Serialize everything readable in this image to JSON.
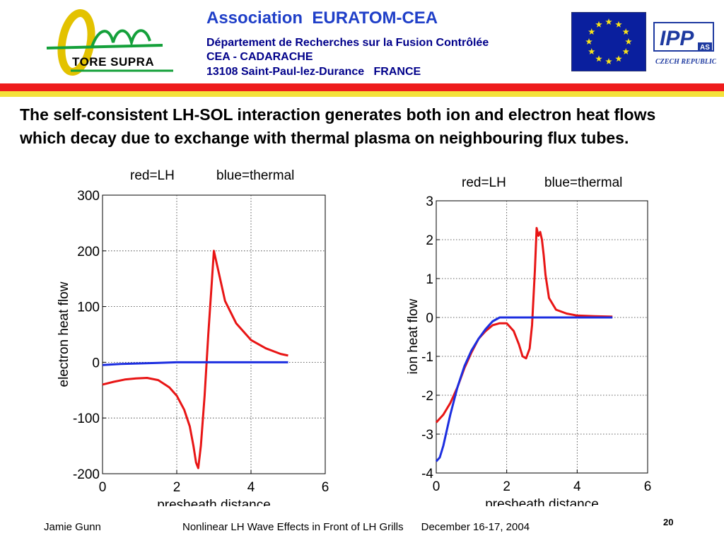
{
  "header": {
    "association": "Association  EURATOM-CEA",
    "address_line1": "Département de Recherches sur la Fusion Contrôlée",
    "address_line2": "CEA - CADARACHE",
    "address_line3": "13108 Saint-Paul-lez-Durance   FRANCE",
    "logo_text": "TORE SUPRA",
    "ipp_logo_text": "IPP",
    "ipp_logo_sub": "AS",
    "ipp_country": "CZECH REPUBLIC"
  },
  "headline": "The self-consistent LH-SOL interaction generates both ion and electron heat flows which decay due to exchange with thermal plasma on neighbouring flux tubes.",
  "footer": {
    "author": "Jamie Gunn",
    "talk": "Nonlinear LH Wave Effects in Front of LH Grills      December 16-17, 2004",
    "page": "20"
  },
  "colors": {
    "lh": "#e81515",
    "thermal": "#1c2ee0",
    "stripe_red": "#ee1c1c",
    "stripe_yellow": "#f4e23a",
    "title_blue": "#1f3fc8"
  },
  "chart_data": [
    {
      "type": "line",
      "header_left": "red=LH",
      "header_right": "blue=thermal",
      "xlabel": "presheath distance",
      "ylabel": "electron heat flow",
      "xlim": [
        0,
        6
      ],
      "ylim": [
        -200,
        300
      ],
      "xticks": [
        "0",
        "2",
        "4",
        "6"
      ],
      "yticks": [
        "-200",
        "-100",
        "0",
        "100",
        "200",
        "300"
      ],
      "xtick_values": [
        0,
        2,
        4,
        6
      ],
      "ytick_values": [
        -200,
        -100,
        0,
        100,
        200,
        300
      ],
      "grid": true,
      "series": [
        {
          "name": "red=LH",
          "color": "#e81515",
          "x": [
            0,
            0.3,
            0.6,
            0.9,
            1.2,
            1.5,
            1.8,
            2.0,
            2.2,
            2.35,
            2.45,
            2.52,
            2.58,
            2.65,
            2.75,
            2.85,
            2.95,
            3.0,
            3.1,
            3.3,
            3.6,
            4.0,
            4.4,
            4.8,
            5.0
          ],
          "y": [
            -40,
            -35,
            -31,
            -29,
            -28,
            -32,
            -45,
            -60,
            -85,
            -115,
            -150,
            -180,
            -190,
            -150,
            -60,
            50,
            150,
            200,
            170,
            110,
            70,
            40,
            25,
            15,
            12
          ]
        },
        {
          "name": "blue=thermal",
          "color": "#1c2ee0",
          "x": [
            0,
            0.5,
            1.0,
            1.5,
            2.0,
            2.5,
            3.0,
            3.5,
            4.0,
            4.5,
            5.0
          ],
          "y": [
            -5,
            -3,
            -2,
            -1,
            0,
            0,
            0,
            0,
            0,
            0,
            0
          ]
        }
      ]
    },
    {
      "type": "line",
      "header_left": "red=LH",
      "header_right": "blue=thermal",
      "xlabel": "presheath distance",
      "ylabel": "ion heat flow",
      "xlim": [
        0,
        6
      ],
      "ylim": [
        -4,
        3
      ],
      "xticks": [
        "0",
        "2",
        "4",
        "6"
      ],
      "yticks": [
        "-4",
        "-3",
        "-2",
        "-1",
        "0",
        "1",
        "2",
        "3"
      ],
      "xtick_values": [
        0,
        2,
        4,
        6
      ],
      "ytick_values": [
        -4,
        -3,
        -2,
        -1,
        0,
        1,
        2,
        3
      ],
      "grid": true,
      "series": [
        {
          "name": "red=LH",
          "color": "#e81515",
          "x": [
            0,
            0.2,
            0.4,
            0.6,
            0.8,
            1.0,
            1.2,
            1.4,
            1.6,
            1.8,
            2.0,
            2.2,
            2.35,
            2.45,
            2.55,
            2.65,
            2.72,
            2.8,
            2.85,
            2.9,
            2.95,
            3.0,
            3.05,
            3.1,
            3.2,
            3.4,
            3.7,
            4.0,
            4.5,
            5.0
          ],
          "y": [
            -2.7,
            -2.5,
            -2.2,
            -1.8,
            -1.3,
            -0.9,
            -0.55,
            -0.35,
            -0.2,
            -0.15,
            -0.15,
            -0.35,
            -0.7,
            -1.0,
            -1.05,
            -0.8,
            -0.2,
            1.2,
            2.3,
            2.1,
            2.2,
            2.0,
            1.6,
            1.1,
            0.5,
            0.2,
            0.1,
            0.05,
            0.03,
            0.02
          ]
        },
        {
          "name": "blue=thermal",
          "color": "#1c2ee0",
          "x": [
            0,
            0.1,
            0.2,
            0.4,
            0.6,
            0.8,
            1.0,
            1.2,
            1.4,
            1.6,
            1.8,
            2.0,
            2.5,
            3.0,
            4.0,
            5.0
          ],
          "y": [
            -3.7,
            -3.6,
            -3.3,
            -2.5,
            -1.8,
            -1.25,
            -0.85,
            -0.55,
            -0.3,
            -0.1,
            0,
            0,
            0,
            0,
            0,
            0
          ]
        }
      ]
    }
  ]
}
